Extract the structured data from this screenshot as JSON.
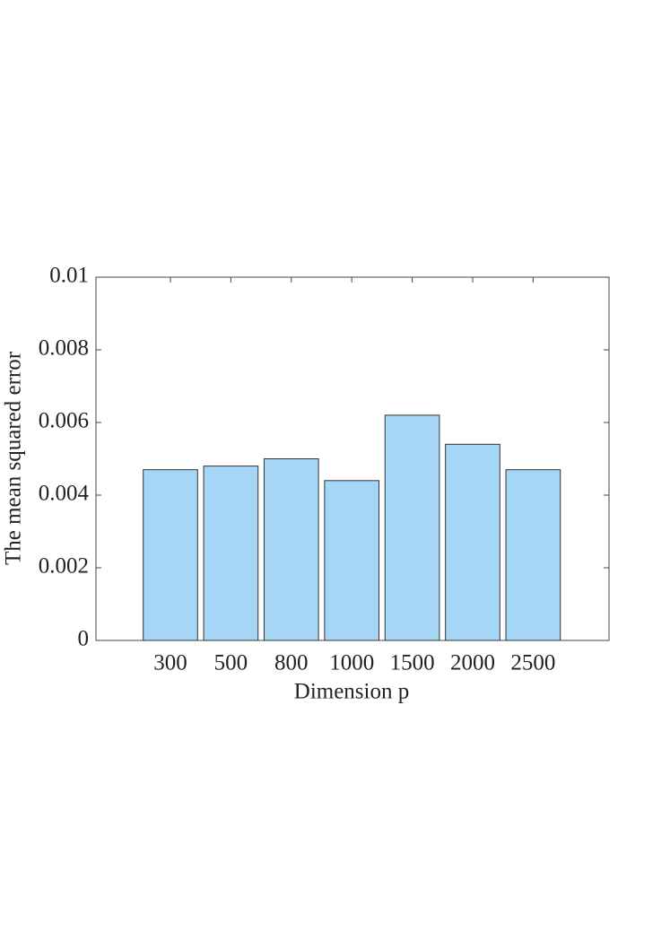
{
  "chart_data": {
    "type": "bar",
    "xlabel": "Dimension p",
    "ylabel": "The mean squared error",
    "categories": [
      "300",
      "500",
      "800",
      "1000",
      "1500",
      "2000",
      "2500"
    ],
    "values": [
      0.0047,
      0.0048,
      0.005,
      0.0044,
      0.0062,
      0.0054,
      0.0047
    ],
    "color": "#a6d6f6",
    "edgecolor": "#333333",
    "ylim": [
      0,
      0.01
    ],
    "yticks": [
      0,
      0.002,
      0.004,
      0.006,
      0.008,
      0.01
    ],
    "grid": false
  }
}
